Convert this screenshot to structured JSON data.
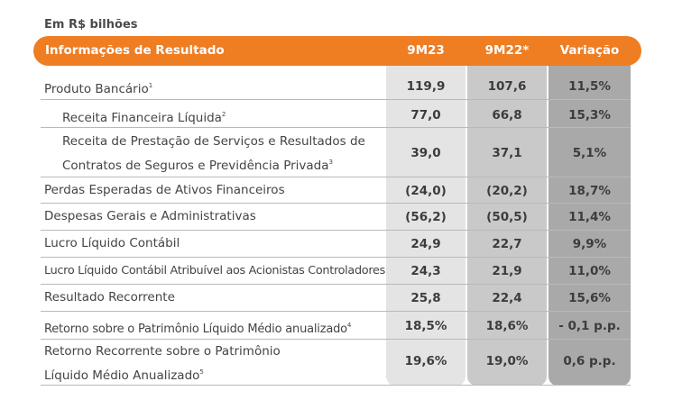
{
  "unit": "Em R$ bilhões",
  "header": {
    "label": "Informações de Resultado",
    "c1": "9M23",
    "c2": "9M22*",
    "c3": "Variação"
  },
  "rows": [
    {
      "label": "Produto Bancário",
      "sup": "1",
      "v1": "119,9",
      "v2": "107,6",
      "v3": "11,5%"
    },
    {
      "label": "Receita Financeira Líquida",
      "sup": "2",
      "v1": "77,0",
      "v2": "66,8",
      "v3": "15,3%"
    },
    {
      "label_line1": "Receita de Prestação de Serviços e Resultados de",
      "label_line2": "Contratos de Seguros e Previdência Privada",
      "sup": "3",
      "v1": "39,0",
      "v2": "37,1",
      "v3": "5,1%"
    },
    {
      "label": "Perdas Esperadas de Ativos Financeiros",
      "v1": "(24,0)",
      "v2": "(20,2)",
      "v3": "18,7%"
    },
    {
      "label": "Despesas Gerais e Administrativas",
      "v1": "(56,2)",
      "v2": "(50,5)",
      "v3": "11,4%"
    },
    {
      "label": "Lucro Líquido Contábil",
      "v1": "24,9",
      "v2": "22,7",
      "v3": "9,9%"
    },
    {
      "label": "Lucro Líquido Contábil Atribuível aos Acionistas Controladores",
      "v1": "24,3",
      "v2": "21,9",
      "v3": "11,0%"
    },
    {
      "label": "Resultado Recorrente",
      "v1": "25,8",
      "v2": "22,4",
      "v3": "15,6%"
    },
    {
      "label": "Retorno sobre o Patrimônio Líquido Médio anualizado",
      "sup": "4",
      "v1": "18,5%",
      "v2": "18,6%",
      "v3": "- 0,1 p.p."
    },
    {
      "label_line1": "Retorno Recorrente sobre o Patrimônio",
      "label_line2": "Líquido Médio Anualizado",
      "sup": "5",
      "v1": "19,6%",
      "v2": "19,0%",
      "v3": "0,6 p.p."
    }
  ]
}
